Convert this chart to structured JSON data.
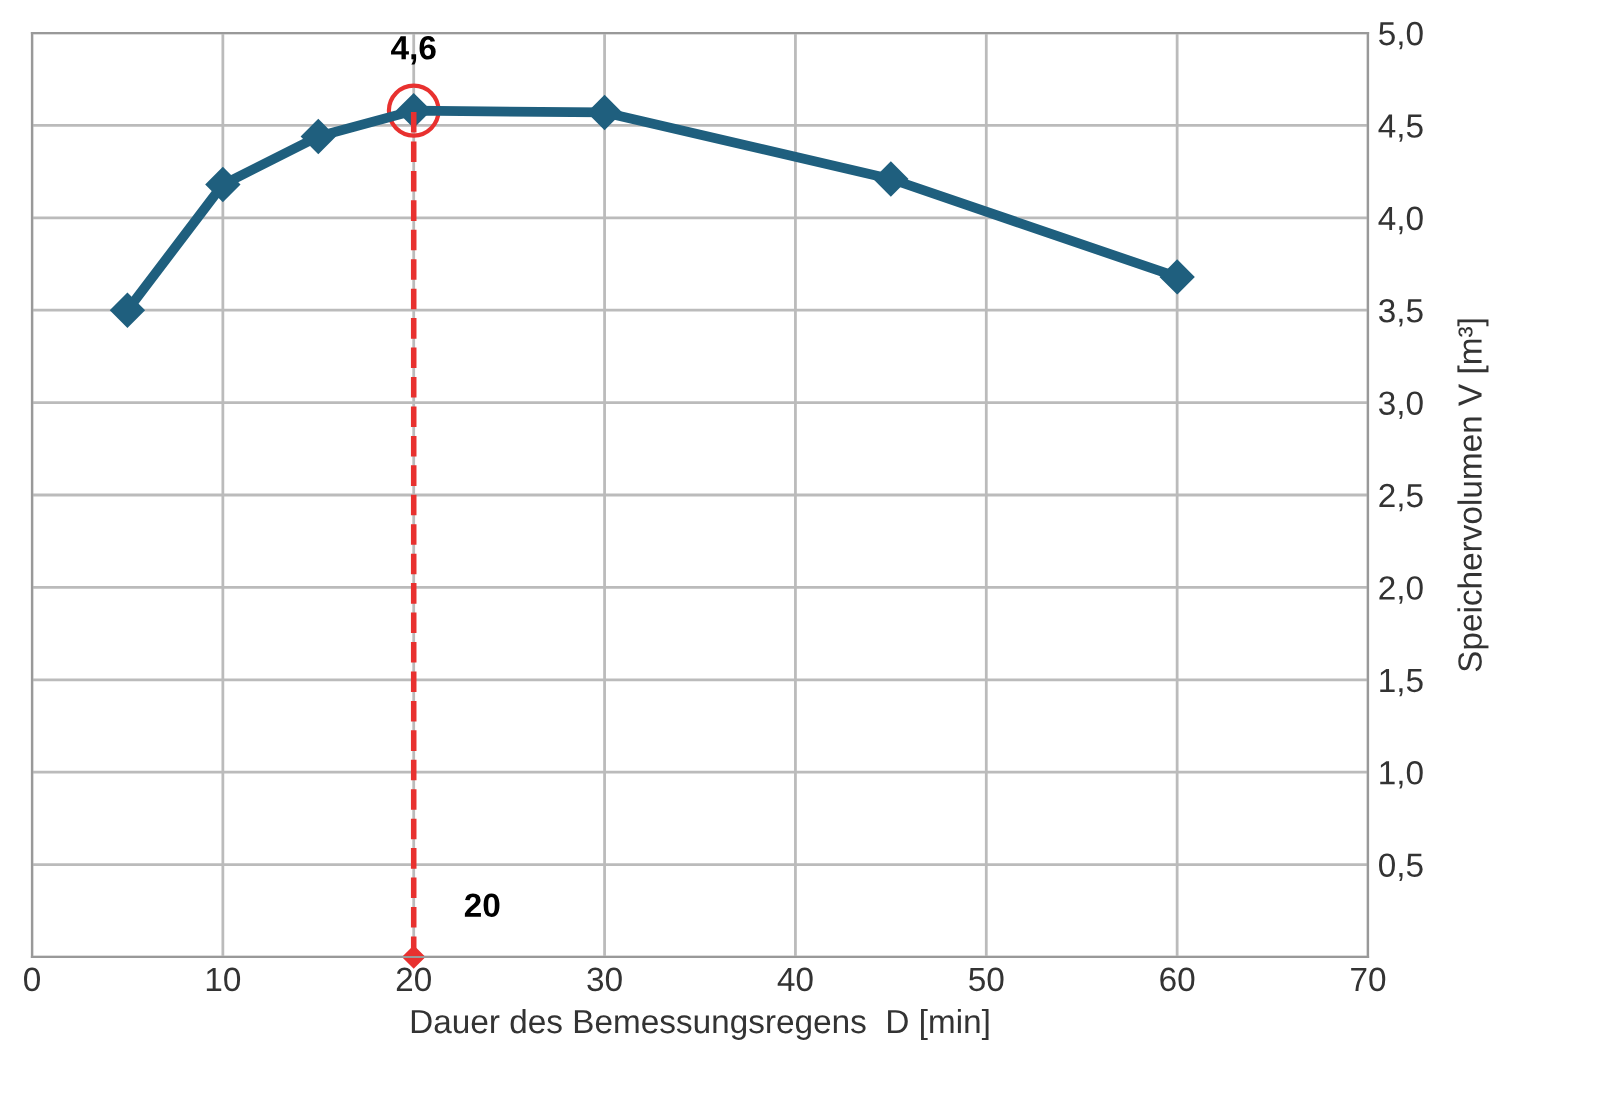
{
  "chart_data": {
    "type": "line",
    "xlabel": "Dauer des Bemessungsregens  D [min]",
    "ylabel": "Speichervolumen V [m³]",
    "x": [
      5,
      10,
      15,
      20,
      30,
      45,
      60
    ],
    "series": [
      {
        "color": "#1f5f7e",
        "values": [
          3.5,
          4.18,
          4.44,
          4.58,
          4.57,
          4.21,
          3.68
        ]
      }
    ],
    "xlim": [
      0,
      70
    ],
    "xticks": [
      0,
      10,
      20,
      30,
      40,
      50,
      60,
      70
    ],
    "ylim": [
      0,
      5
    ],
    "yticks": [
      {
        "value": 0,
        "label": null
      },
      {
        "value": 0.5,
        "label": "0,5"
      },
      {
        "value": 1,
        "label": "1,0"
      },
      {
        "value": 1.5,
        "label": "1,5"
      },
      {
        "value": 2,
        "label": "2,0"
      },
      {
        "value": 2.5,
        "label": "2,5"
      },
      {
        "value": 3,
        "label": "3,0"
      },
      {
        "value": 3.5,
        "label": "3,5"
      },
      {
        "value": 4,
        "label": "4,0"
      },
      {
        "value": 4.5,
        "label": "4,5"
      },
      {
        "value": 5,
        "label": "5,0"
      }
    ],
    "ref_lines": [
      {
        "axis": "x",
        "value": 20,
        "label": "20",
        "color": "#e8312f",
        "line_style": "dashed"
      }
    ],
    "annotations": [
      {
        "text": "4,6",
        "x": 20,
        "y": 4.58
      }
    ],
    "grid": true,
    "marker": "diamond",
    "line_style": "solid",
    "legend": false
  }
}
